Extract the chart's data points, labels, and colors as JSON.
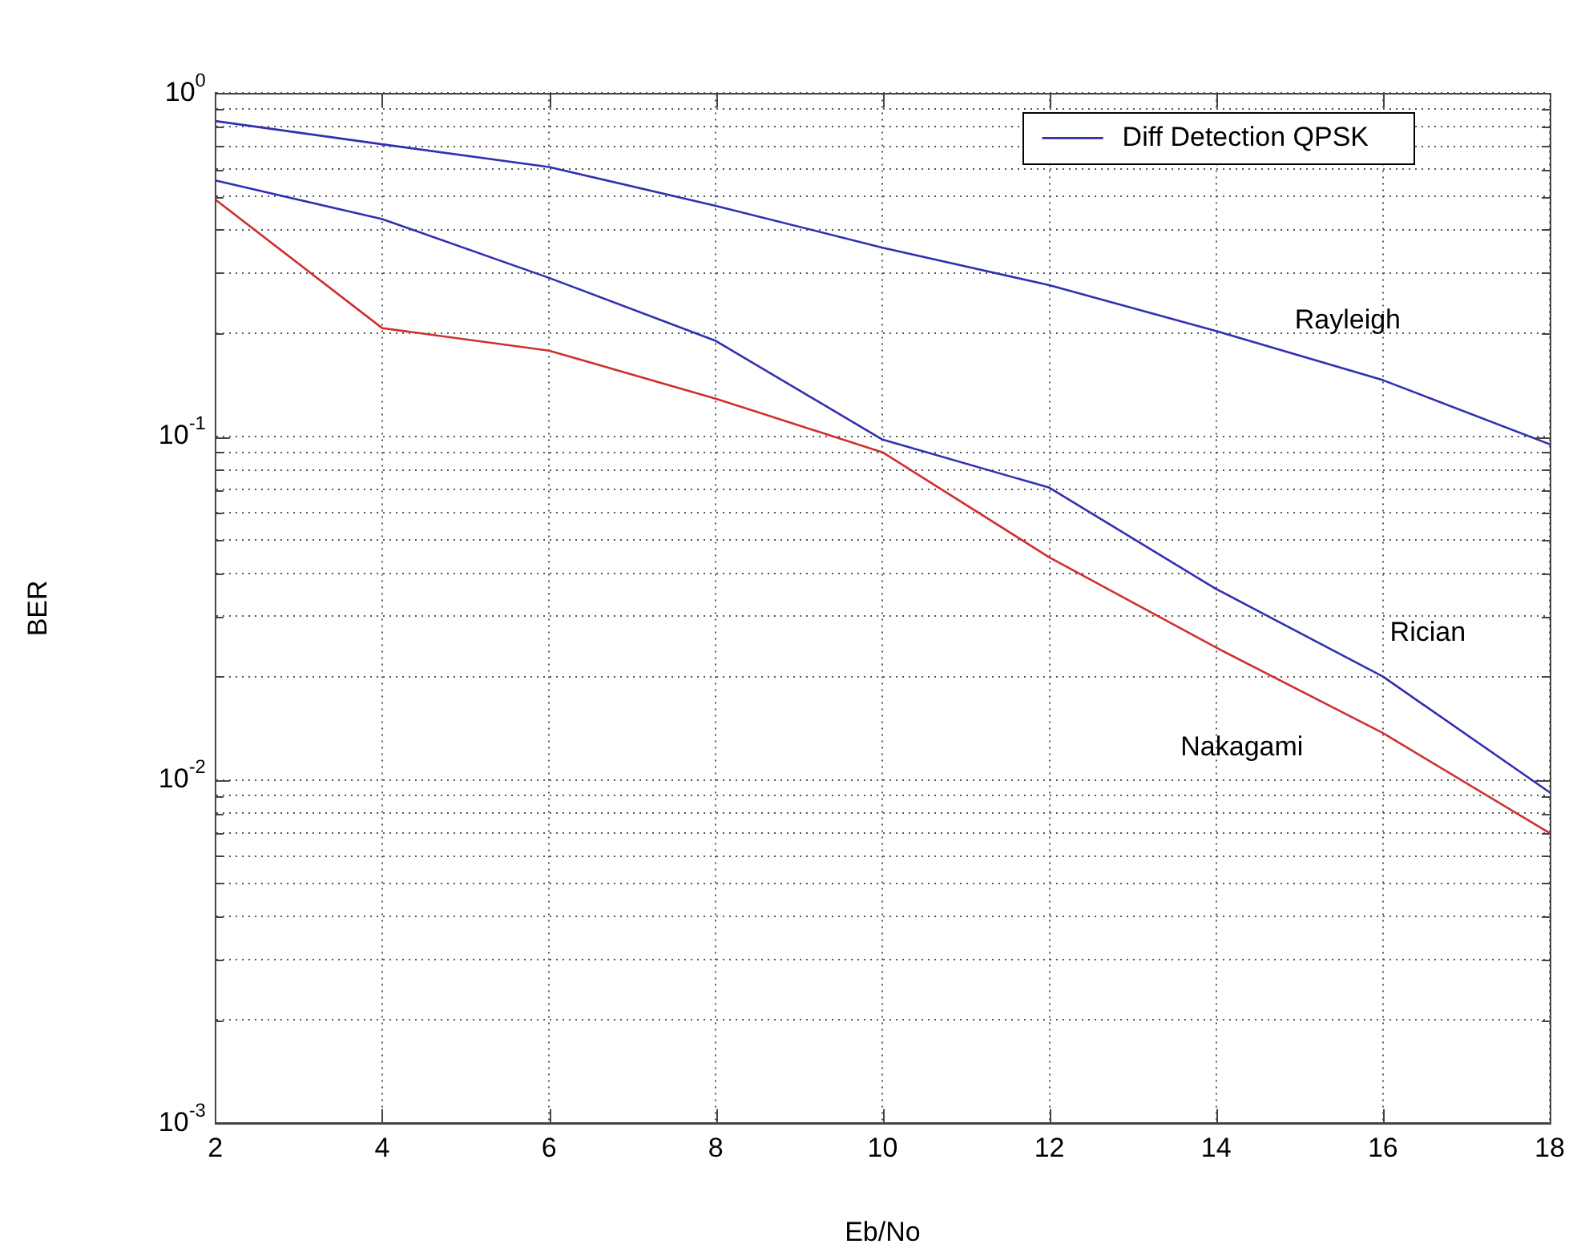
{
  "chart_data": {
    "type": "line",
    "xlabel": "Eb/No",
    "ylabel": "BER",
    "x": [
      2,
      4,
      6,
      8,
      10,
      12,
      14,
      16,
      18
    ],
    "series": [
      {
        "name": "Diff Detection QPSK",
        "color": "#3030b0",
        "values": [
          0.83,
          0.71,
          0.61,
          0.47,
          0.355,
          0.276,
          0.203,
          0.146,
          0.095
        ]
      },
      {
        "color": "#3030b0",
        "values": [
          0.557,
          0.43,
          0.29,
          0.19,
          0.098,
          0.071,
          0.036,
          0.02,
          0.0092
        ]
      },
      {
        "color": "#d03030",
        "values": [
          0.49,
          0.207,
          0.178,
          0.129,
          0.09,
          0.0445,
          0.0243,
          0.0137,
          0.007
        ]
      }
    ],
    "annotations": [
      "Rayleigh",
      "Rician",
      "Nakagami"
    ],
    "log": "y",
    "xlim": [
      2,
      18
    ],
    "ylim": [
      0.001,
      1
    ],
    "xticks": [
      2,
      4,
      6,
      8,
      10,
      12,
      14,
      16,
      18
    ],
    "yticks": [
      {
        "value": 0.001,
        "label": "10$^{-3}$"
      },
      {
        "value": 0.002,
        "label": null
      },
      {
        "value": 0.003,
        "label": null
      },
      {
        "value": 0.004,
        "label": null
      },
      {
        "value": 0.005,
        "label": null
      },
      {
        "value": 0.006,
        "label": null
      },
      {
        "value": 0.007,
        "label": null
      },
      {
        "value": 0.008,
        "label": null
      },
      {
        "value": 0.009,
        "label": null
      },
      {
        "value": 0.01,
        "label": "10$^{-2}$"
      },
      {
        "value": 0.02,
        "label": null
      },
      {
        "value": 0.03,
        "label": null
      },
      {
        "value": 0.04,
        "label": null
      },
      {
        "value": 0.05,
        "label": null
      },
      {
        "value": 0.06,
        "label": null
      },
      {
        "value": 0.07,
        "label": null
      },
      {
        "value": 0.08,
        "label": null
      },
      {
        "value": 0.09,
        "label": null
      },
      {
        "value": 0.1,
        "label": "10$^{-1}$"
      },
      {
        "value": 0.2,
        "label": null
      },
      {
        "value": 0.3,
        "label": null
      },
      {
        "value": 0.4,
        "label": null
      },
      {
        "value": 0.5,
        "label": null
      },
      {
        "value": 0.6,
        "label": null
      },
      {
        "value": 0.7,
        "label": null
      },
      {
        "value": 0.8,
        "label": null
      },
      {
        "value": 0.9,
        "label": null
      },
      {
        "value": 1,
        "label": "10$^{0}$"
      }
    ],
    "grid": true,
    "legend": "top right",
    "marker": "none",
    "line_style": "solid"
  }
}
